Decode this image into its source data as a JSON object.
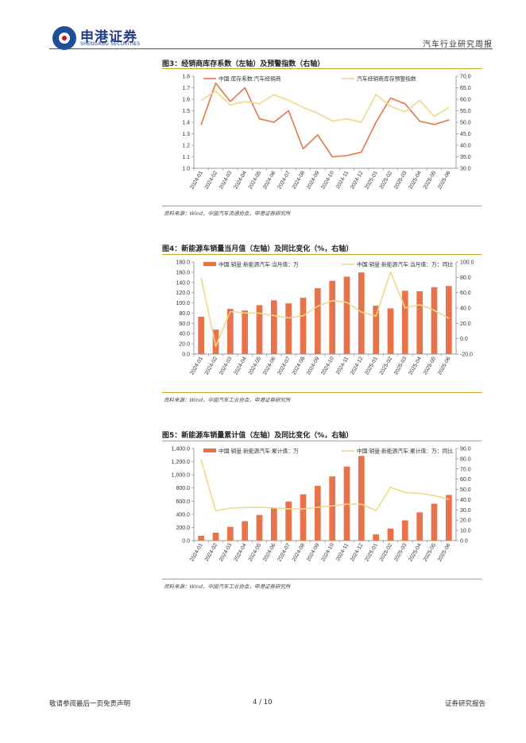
{
  "header": {
    "logo_cn": "申港证券",
    "logo_en": "SHENGANG SECURITIES",
    "right_label": "汽车行业研究周报"
  },
  "fig3": {
    "title": "图3：经销商库存系数（左轴）及预警指数（右轴）",
    "source": "资料来源：Wind，中国汽车流通协会，申港证券研究所"
  },
  "fig4": {
    "title": "图4：新能源车销量当月值（左轴）及同比变化（%，右轴）",
    "source": "资料来源：Wind，中国汽车工业协会，申港证券研究所"
  },
  "fig5": {
    "title": "图5：新能源车销量累计值（左轴）及同比变化（%，右轴）",
    "source": "资料来源：Wind，中国汽车工业协会，申港证券研究所"
  },
  "footer": {
    "left": "敬请参阅最后一页免责声明",
    "center": "4 / 10",
    "right": "证券研究报告"
  },
  "colors": {
    "orange": "#E8734A",
    "yellow": "#EDD98C",
    "brand_blue": "#1F4E9C",
    "brand_red": "#C8102E"
  },
  "chart_data": [
    {
      "type": "line",
      "categories": [
        "2024-01",
        "2024-02",
        "2024-03",
        "2024-04",
        "2024-05",
        "2024-06",
        "2024-07",
        "2024-08",
        "2024-09",
        "2024-10",
        "2024-11",
        "2024-12",
        "2025-01",
        "2025-02",
        "2025-03",
        "2025-04",
        "2025-05",
        "2025-06"
      ],
      "series": [
        {
          "name": "中国:库存系数:汽车经销商",
          "axis": "left",
          "color": "#E8734A",
          "values": [
            1.38,
            1.74,
            1.58,
            1.7,
            1.43,
            1.4,
            1.5,
            1.17,
            1.29,
            1.1,
            1.11,
            1.14,
            1.4,
            1.61,
            1.56,
            1.41,
            1.38,
            1.42
          ]
        },
        {
          "name": "汽车经销商库存预警指数",
          "axis": "right",
          "color": "#EDD98C",
          "values": [
            59.5,
            63.5,
            57.5,
            59.0,
            58.0,
            62.0,
            59.5,
            56.5,
            54.0,
            50.5,
            51.5,
            50.0,
            62.0,
            57.0,
            54.5,
            59.5,
            52.5,
            56.5
          ]
        }
      ],
      "ylim_left": [
        1.0,
        1.8
      ],
      "yticks_left": [
        "1.8",
        "1.7",
        "1.6",
        "1.5",
        "1.4",
        "1.3",
        "1.2",
        "1.1",
        "1.0"
      ],
      "ylim_right": [
        30.0,
        70.0
      ],
      "yticks_right": [
        "70.0",
        "65.0",
        "60.0",
        "55.0",
        "50.0",
        "45.0",
        "40.0",
        "35.0",
        "30.0"
      ],
      "legend": "top"
    },
    {
      "type": "bar",
      "categories": [
        "2024-01",
        "2024-02",
        "2024-03",
        "2024-04",
        "2024-05",
        "2024-06",
        "2024-07",
        "2024-08",
        "2024-09",
        "2024-10",
        "2024-11",
        "2024-12",
        "2025-01",
        "2025-02",
        "2025-03",
        "2025-04",
        "2025-05",
        "2025-06"
      ],
      "series": [
        {
          "name": "中国:销量:新能源汽车:当月值：万",
          "axis": "left",
          "kind": "bar",
          "color": "#E8734A",
          "values": [
            72.9,
            47.7,
            88.3,
            85.0,
            95.5,
            104.9,
            99.1,
            110.0,
            128.7,
            143.0,
            151.2,
            159.6,
            94.4,
            89.2,
            123.7,
            122.6,
            130.7,
            132.9
          ]
        },
        {
          "name": "中国:销量:新能源汽车:当月值：万：同比",
          "axis": "right",
          "kind": "line",
          "color": "#EDD98C",
          "values": [
            79.0,
            -9.9,
            35.3,
            33.5,
            33.3,
            30.1,
            27.0,
            30.0,
            42.3,
            49.6,
            47.4,
            34.6,
            29.4,
            87.1,
            40.1,
            44.2,
            36.9,
            26.7
          ]
        }
      ],
      "ylim_left": [
        0.0,
        180.0
      ],
      "yticks_left": [
        "180.0",
        "160.0",
        "140.0",
        "120.0",
        "100.0",
        "80.0",
        "60.0",
        "40.0",
        "20.0",
        "0.0"
      ],
      "ylim_right": [
        -20.0,
        100.0
      ],
      "yticks_right": [
        "100.0",
        "80.0",
        "60.0",
        "40.0",
        "20.0",
        "0.0",
        "-20.0"
      ],
      "legend": "top"
    },
    {
      "type": "bar",
      "categories": [
        "2024-01",
        "2024-02",
        "2024-03",
        "2024-04",
        "2024-05",
        "2024-06",
        "2024-07",
        "2024-08",
        "2024-09",
        "2024-10",
        "2024-11",
        "2024-12",
        "2025-01",
        "2025-02",
        "2025-03",
        "2025-04",
        "2025-05",
        "2025-06"
      ],
      "series": [
        {
          "name": "中国:销量:新能源汽车:累计值：万",
          "axis": "left",
          "kind": "bar",
          "color": "#E8734A",
          "values": [
            72.9,
            120.7,
            209.0,
            294.0,
            389.5,
            494.4,
            593.5,
            703.7,
            832.0,
            975.0,
            1126.2,
            1286.6,
            94.4,
            183.6,
            307.4,
            430.0,
            560.8,
            693.7
          ]
        },
        {
          "name": "中国:销量:新能源汽车:累计值：万：同比",
          "axis": "right",
          "kind": "line",
          "color": "#EDD98C",
          "values": [
            78.8,
            29.0,
            31.8,
            32.3,
            32.5,
            32.0,
            31.1,
            30.9,
            32.5,
            33.9,
            35.6,
            35.5,
            29.4,
            52.0,
            47.1,
            46.2,
            44.0,
            40.3
          ]
        }
      ],
      "ylim_left": [
        0.0,
        1400.0
      ],
      "yticks_left": [
        "1,400.0",
        "1,200.0",
        "1,000.0",
        "800.0",
        "600.0",
        "400.0",
        "200.0",
        "0.0"
      ],
      "ylim_right": [
        0.0,
        90.0
      ],
      "yticks_right": [
        "90.0",
        "80.0",
        "70.0",
        "60.0",
        "50.0",
        "40.0",
        "30.0",
        "20.0",
        "10.0",
        "0.0"
      ],
      "legend": "top"
    }
  ]
}
